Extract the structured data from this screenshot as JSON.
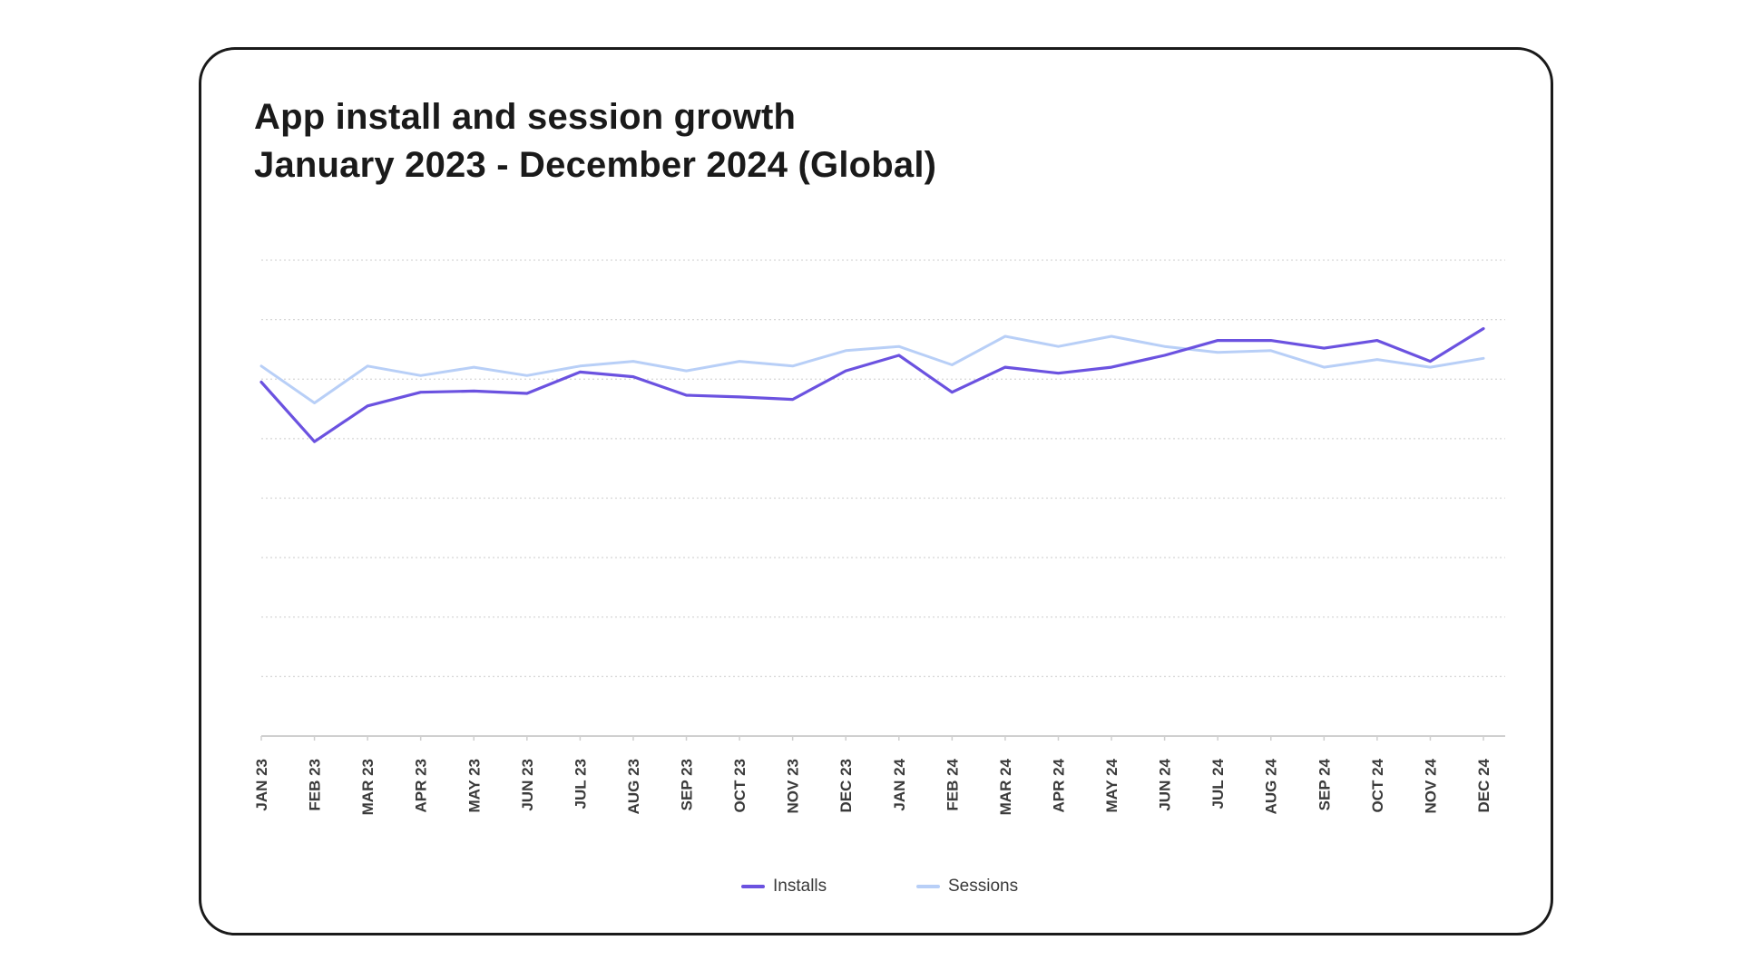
{
  "card": {
    "title_line1": "App install and session growth",
    "title_line2": "January 2023 - December 2024 (Global)"
  },
  "chart_data": {
    "type": "line",
    "title": "App install and session growth January 2023 - December 2024 (Global)",
    "xlabel": "",
    "ylabel": "",
    "categories": [
      "JAN 23",
      "FEB 23",
      "MAR 23",
      "APR 23",
      "MAY 23",
      "JUN 23",
      "JUL 23",
      "AUG 23",
      "SEP 23",
      "OCT 23",
      "NOV 23",
      "DEC 23",
      "JAN 24",
      "FEB 24",
      "MAR 24",
      "APR 24",
      "MAY 24",
      "JUN 24",
      "JUL 24",
      "AUG 24",
      "SEP 24",
      "OCT 24",
      "NOV 24",
      "DEC 24"
    ],
    "series": [
      {
        "name": "Installs",
        "color": "#6b52e0",
        "values": [
          5.95,
          4.95,
          5.55,
          5.78,
          5.8,
          5.76,
          6.12,
          6.04,
          5.73,
          5.7,
          5.66,
          6.14,
          6.4,
          5.78,
          6.2,
          6.1,
          6.2,
          6.4,
          6.65,
          6.65,
          6.52,
          6.65,
          6.3,
          6.85
        ]
      },
      {
        "name": "Sessions",
        "color": "#b8cff7",
        "values": [
          6.22,
          5.6,
          6.22,
          6.06,
          6.2,
          6.06,
          6.22,
          6.3,
          6.14,
          6.3,
          6.22,
          6.48,
          6.55,
          6.24,
          6.72,
          6.55,
          6.72,
          6.55,
          6.45,
          6.48,
          6.2,
          6.33,
          6.2,
          6.35
        ]
      }
    ],
    "ylim": [
      0,
      8
    ],
    "y_ticks": [
      0,
      1,
      2,
      3,
      4,
      5,
      6,
      7,
      8
    ],
    "y_tick_labels_visible": false,
    "grid": true,
    "legend_position": "bottom-center"
  }
}
